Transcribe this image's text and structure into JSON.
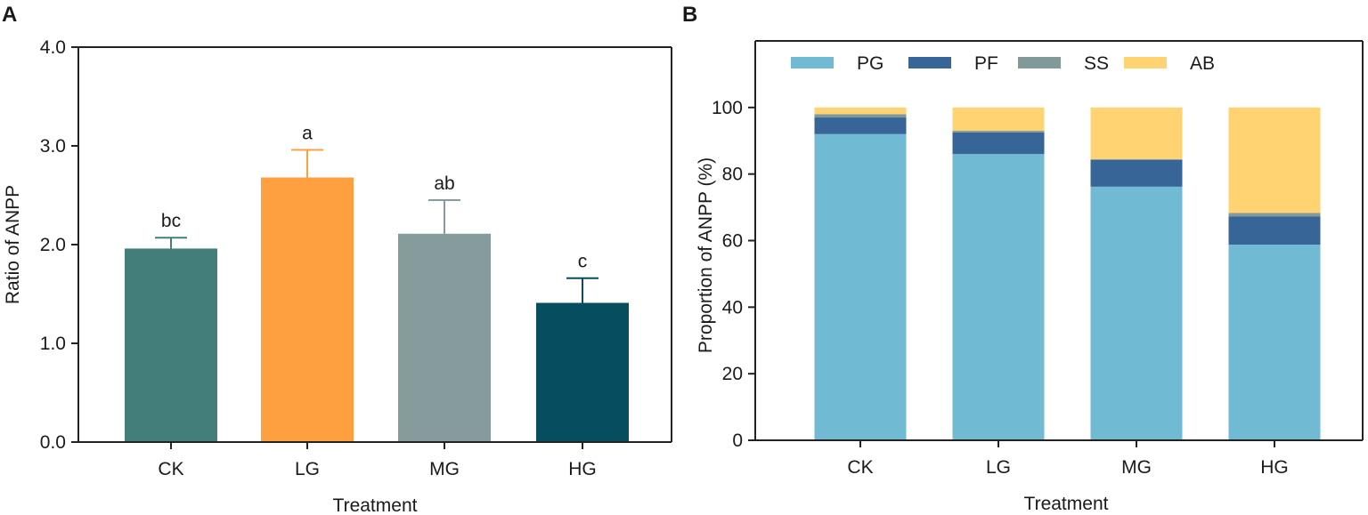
{
  "chart_data": [
    {
      "panel": "A",
      "type": "bar",
      "categories": [
        "CK",
        "LG",
        "MG",
        "HG"
      ],
      "values": [
        1.96,
        2.68,
        2.11,
        1.41
      ],
      "errors": [
        0.11,
        0.28,
        0.34,
        0.25
      ],
      "significance": [
        "bc",
        "a",
        "ab",
        "c"
      ],
      "colors": [
        "#437e7b",
        "#ffa040",
        "#869b9b",
        "#064d60"
      ],
      "title": "",
      "xlabel": "Treatment",
      "ylabel": "Ratio of ANPP",
      "ylim": [
        0,
        4
      ],
      "yticks": [
        0,
        1,
        2,
        3,
        4
      ],
      "ytick_labels": [
        "0.0",
        "1.0",
        "2.0",
        "3.0",
        "4.0"
      ]
    },
    {
      "panel": "B",
      "type": "bar",
      "stacked": true,
      "categories": [
        "CK",
        "LG",
        "MG",
        "HG"
      ],
      "series": [
        {
          "name": "PG",
          "color": "#71bad4",
          "values": [
            92.0,
            86.0,
            76.2,
            58.8
          ]
        },
        {
          "name": "PF",
          "color": "#376598",
          "values": [
            5.0,
            6.5,
            8.0,
            8.5
          ]
        },
        {
          "name": "SS",
          "color": "#82999a",
          "values": [
            1.0,
            0.5,
            0.3,
            1.0
          ]
        },
        {
          "name": "AB",
          "color": "#ffd371",
          "values": [
            2.0,
            7.0,
            15.5,
            31.7
          ]
        }
      ],
      "title": "",
      "xlabel": "Treatment",
      "ylabel": "Proportion of ANPP (%)",
      "ylim": [
        0,
        120
      ],
      "yticks": [
        0,
        20,
        40,
        60,
        80,
        100
      ],
      "legend": "top"
    }
  ]
}
